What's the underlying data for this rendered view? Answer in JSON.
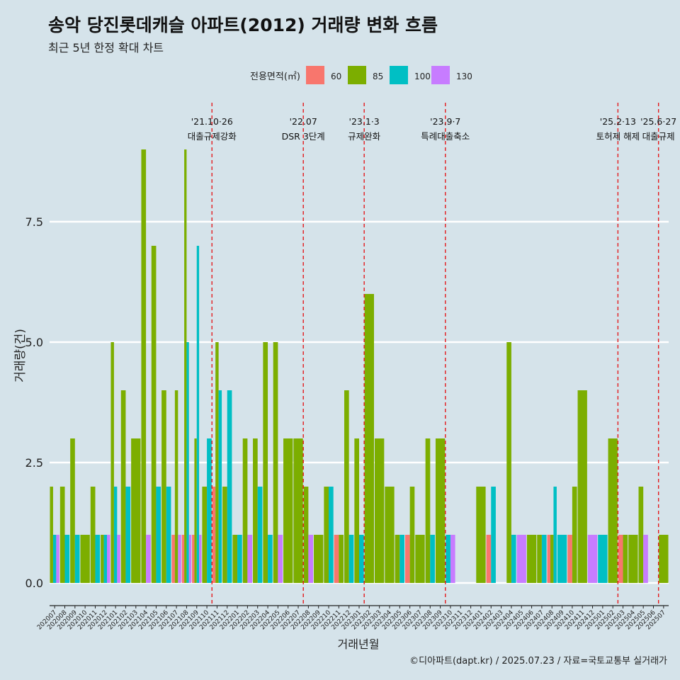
{
  "title": "송악 당진롯데캐슬 아파트(2012) 거래량 변화 흐름",
  "subtitle": "최근 5년 한정 확대 차트",
  "caption": "©디아파트(dapt.kr) / 2025.07.23 / 자료=국토교통부 실거래가",
  "chart_data": {
    "type": "bar",
    "xlabel": "거래년월",
    "ylabel": "거래량(건)",
    "ylim": [
      0,
      9.6
    ],
    "yticks": [
      "0.0",
      "2.5",
      "5.0",
      "7.5"
    ],
    "ytick_values": [
      0,
      2.5,
      5,
      7.5
    ],
    "grid": true,
    "legend": {
      "title": "전용면적(㎡)",
      "position": "top"
    },
    "colors": {
      "60": "#f8766d",
      "85": "#7cae00",
      "100": "#00bfc4",
      "130": "#c77cff"
    },
    "categories": [
      "202007",
      "202008",
      "202009",
      "202010",
      "202011",
      "202012",
      "202101",
      "202102",
      "202103",
      "202104",
      "202105",
      "202106",
      "202107",
      "202108",
      "202109",
      "202110",
      "202111",
      "202112",
      "202201",
      "202202",
      "202203",
      "202204",
      "202205",
      "202206",
      "202207",
      "202208",
      "202209",
      "202210",
      "202211",
      "202212",
      "202301",
      "202302",
      "202303",
      "202304",
      "202305",
      "202306",
      "202307",
      "202308",
      "202309",
      "202310",
      "202311",
      "202312",
      "202401",
      "202402",
      "202403",
      "202404",
      "202405",
      "202406",
      "202407",
      "202408",
      "202409",
      "202410",
      "202411",
      "202412",
      "202501",
      "202502",
      "202503",
      "202504",
      "202505",
      "202506",
      "202507"
    ],
    "series": [
      {
        "name": "60",
        "values": [
          0,
          0,
          0,
          0,
          0,
          0,
          0,
          0,
          0,
          0,
          0,
          0,
          1,
          1,
          1,
          0,
          2,
          0,
          0,
          0,
          0,
          0,
          0,
          0,
          0,
          0,
          0,
          0,
          1,
          0,
          0,
          0,
          0,
          0,
          0,
          1,
          0,
          0,
          0,
          0,
          0,
          0,
          0,
          1,
          0,
          0,
          0,
          0,
          0,
          1,
          0,
          1,
          0,
          0,
          0,
          0,
          1,
          0,
          0,
          0,
          0
        ]
      },
      {
        "name": "85",
        "values": [
          2,
          2,
          3,
          1,
          2,
          1,
          5,
          4,
          3,
          9,
          7,
          4,
          4,
          9,
          3,
          2,
          5,
          2,
          1,
          3,
          3,
          5,
          5,
          3,
          3,
          2,
          1,
          2,
          1,
          4,
          3,
          6,
          3,
          2,
          1,
          2,
          1,
          3,
          3,
          0,
          0,
          0,
          2,
          0,
          0,
          5,
          0,
          1,
          1,
          1,
          0,
          2,
          4,
          0,
          0,
          3,
          1,
          1,
          2,
          0,
          1
        ]
      },
      {
        "name": "100",
        "values": [
          1,
          1,
          1,
          0,
          1,
          1,
          2,
          2,
          0,
          0,
          2,
          2,
          0,
          5,
          7,
          3,
          4,
          4,
          1,
          0,
          2,
          1,
          0,
          0,
          0,
          0,
          0,
          2,
          0,
          1,
          1,
          0,
          0,
          0,
          1,
          0,
          0,
          1,
          0,
          1,
          0,
          0,
          0,
          2,
          0,
          1,
          0,
          0,
          1,
          2,
          1,
          0,
          0,
          0,
          1,
          0,
          0,
          0,
          0,
          0,
          0
        ]
      },
      {
        "name": "130",
        "values": [
          1,
          0,
          0,
          0,
          0,
          1,
          1,
          0,
          0,
          1,
          0,
          0,
          1,
          1,
          1,
          0,
          0,
          0,
          0,
          1,
          0,
          0,
          1,
          0,
          0,
          1,
          0,
          0,
          0,
          0,
          0,
          0,
          0,
          0,
          0,
          0,
          0,
          0,
          0,
          1,
          0,
          0,
          0,
          0,
          0,
          0,
          1,
          0,
          0,
          0,
          0,
          0,
          0,
          1,
          0,
          0,
          0,
          0,
          1,
          0,
          0
        ]
      }
    ],
    "annotations": [
      {
        "index": 15,
        "date": "'21.10·26",
        "label": "대출규제강화"
      },
      {
        "index": 24,
        "date": "'22.07",
        "label": "DSR 3단계"
      },
      {
        "index": 30,
        "date": "'23.1·3",
        "label": "규제완화"
      },
      {
        "index": 38,
        "date": "'23.9·7",
        "label": "특례대출축소"
      },
      {
        "index": 55,
        "date": "'25.2·13",
        "label": "토허제 해제"
      },
      {
        "index": 59,
        "date": "'25.6·27",
        "label": "대출규제"
      }
    ]
  }
}
